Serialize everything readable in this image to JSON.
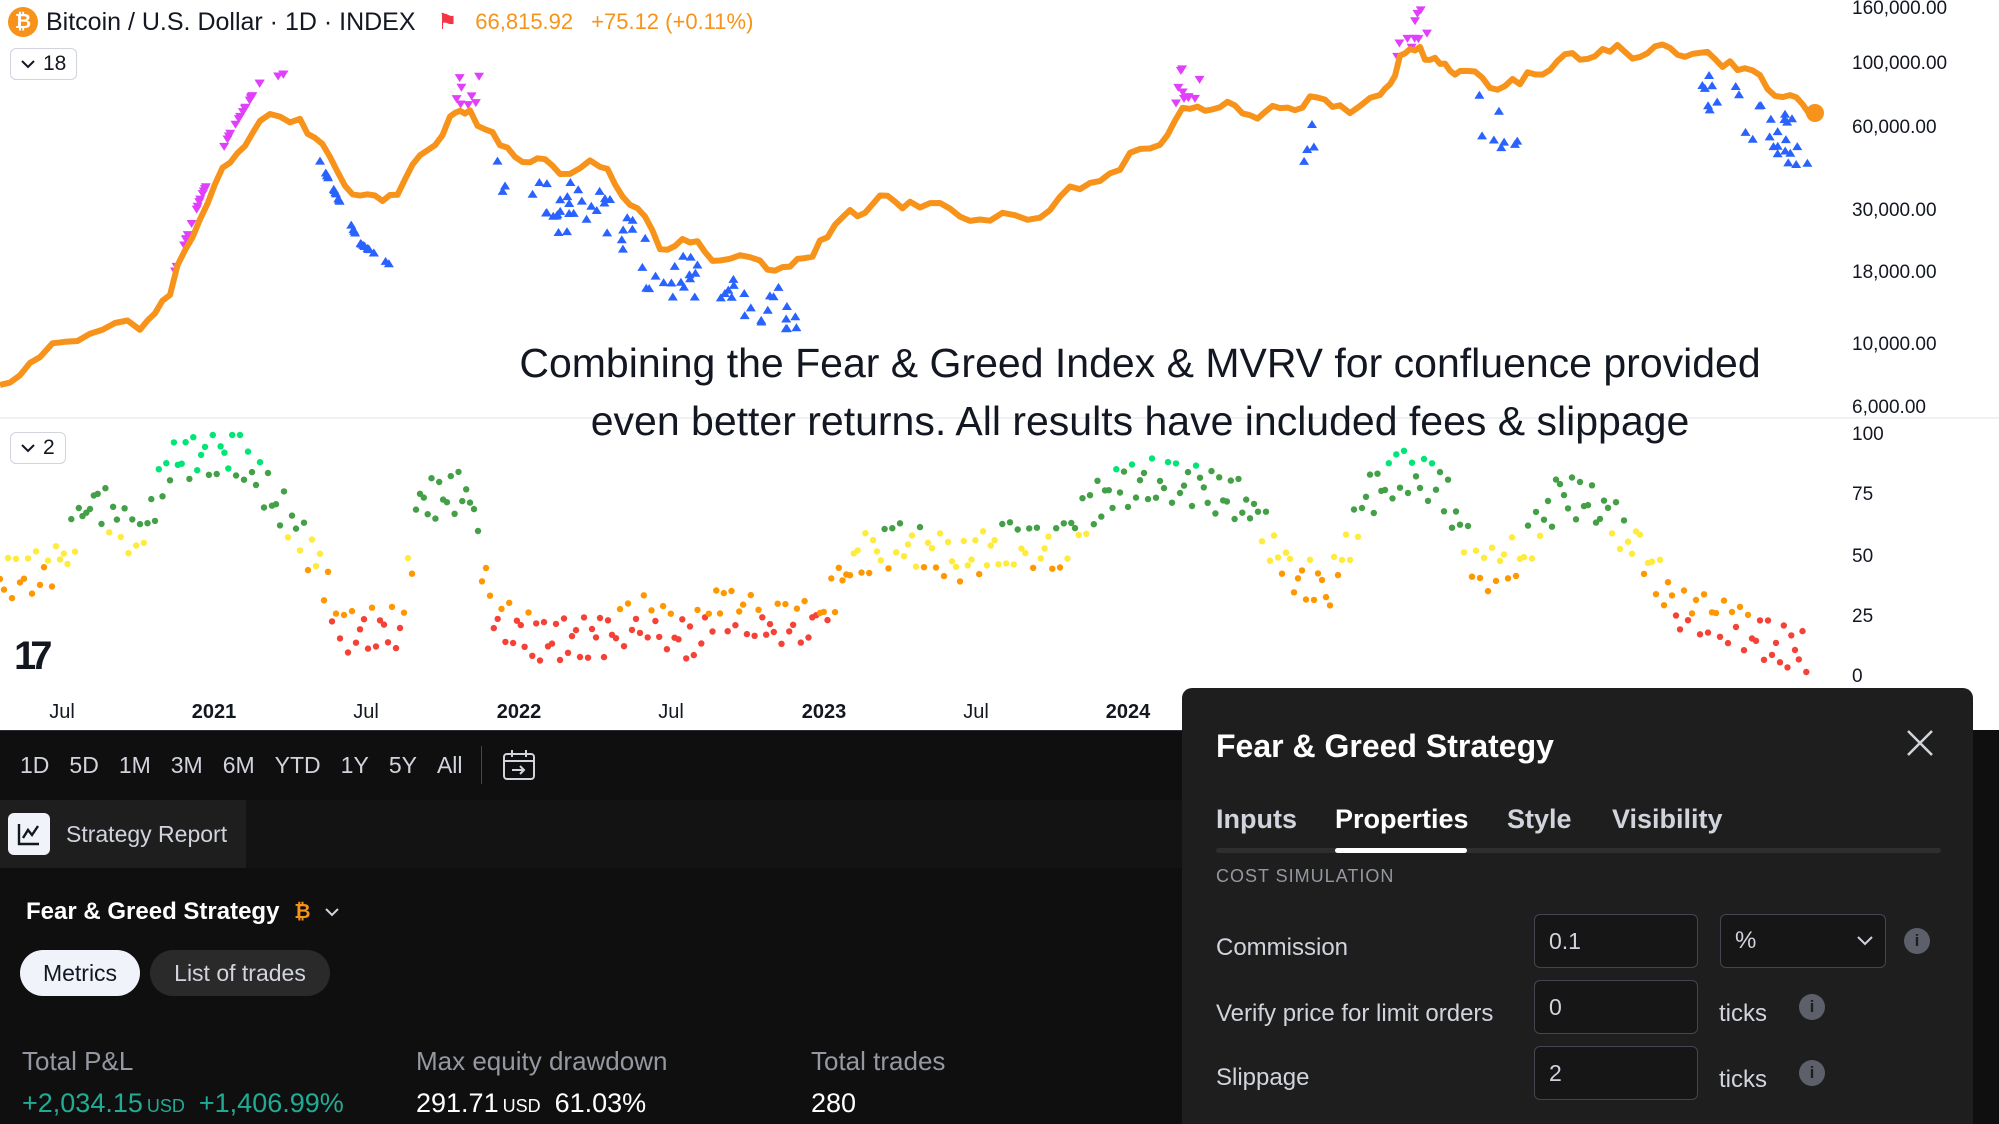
{
  "header": {
    "symbol": "Bitcoin / U.S. Dollar · 1D · INDEX",
    "price": "66,815.92",
    "change": "+75.12 (+0.11%)",
    "logo_glyph": "₿",
    "flag_glyph": "⚑"
  },
  "main_pane": {
    "collapse_label": "18",
    "y_labels": [
      "160,000.00",
      "100,000.00",
      "60,000.00",
      "30,000.00",
      "18,000.00",
      "10,000.00",
      "6,000.00"
    ]
  },
  "indicator_pane": {
    "collapse_label": "2",
    "y_labels": [
      "100",
      "75",
      "50",
      "25",
      "0"
    ]
  },
  "x_axis": {
    "labels": [
      "Jul",
      "2021",
      "Jul",
      "2022",
      "Jul",
      "2023",
      "Jul",
      "2024"
    ]
  },
  "annotation": {
    "line1": "Combining the Fear & Greed Index & MVRV for confluence provided",
    "line2": "even better returns. All results have included fees & slippage"
  },
  "logo_text": "17",
  "toolbar": {
    "ranges": [
      "1D",
      "5D",
      "1M",
      "3M",
      "6M",
      "YTD",
      "1Y",
      "5Y",
      "All"
    ]
  },
  "report": {
    "tab_label": "Strategy Report",
    "strategy_name": "Fear & Greed Strategy",
    "tabs": [
      "Metrics",
      "List of trades"
    ],
    "metrics": [
      {
        "label": "Total P&L",
        "value": "+2,034.15",
        "unit": "USD",
        "pct": "+1,406.99%"
      },
      {
        "label": "Max equity drawdown",
        "value": "291.71",
        "unit": "USD",
        "pct": "61.03%"
      },
      {
        "label": "Total trades",
        "value": "280"
      }
    ]
  },
  "dialog": {
    "title": "Fear & Greed Strategy",
    "tabs": [
      "Inputs",
      "Properties",
      "Style",
      "Visibility"
    ],
    "active_tab": "Properties",
    "section": "COST SIMULATION",
    "rows": [
      {
        "label": "Commission",
        "value": "0.1",
        "select": "%"
      },
      {
        "label": "Verify price for limit orders",
        "value": "0",
        "unit": "ticks"
      },
      {
        "label": "Slippage",
        "value": "2",
        "unit": "ticks"
      }
    ]
  },
  "colors": {
    "price_line": "#f7931a",
    "sell_marker": "#e040fb",
    "buy_marker": "#2962ff",
    "extreme_greed": "#00e676",
    "greed": "#43a047",
    "neutral": "#ffeb3b",
    "fear": "#ff9800",
    "extreme_fear": "#f44336",
    "positive": "#22ab94"
  }
}
